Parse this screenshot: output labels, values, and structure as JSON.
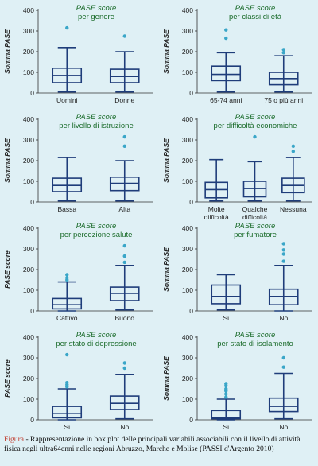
{
  "style": {
    "box_color": "#1f3d7a",
    "outlier_color": "#3aa6c8",
    "title_color": "#1a6b2a",
    "background": "#dff0f5"
  },
  "caption": {
    "label": "Figura",
    "text": " - Rappresentazione in box plot delle principali variabili associabili con il livello di attività fisica negli ultra64enni nelle regioni Abruzzo, Marche e Molise (PASSI d'Argento 2010)"
  },
  "chart_data": [
    {
      "type": "box",
      "title_line1": "PASE score",
      "title_line2": "per genere",
      "ylabel": "Somma PASE",
      "ylim": [
        0,
        400
      ],
      "yticks": [
        0,
        100,
        200,
        300,
        400
      ],
      "categories": [
        [
          "Uomini"
        ],
        [
          "Donne"
        ]
      ],
      "boxes": [
        {
          "min": 5,
          "q1": 50,
          "median": 85,
          "q3": 120,
          "max": 220,
          "outliers": [
            315
          ]
        },
        {
          "min": 5,
          "q1": 50,
          "median": 80,
          "q3": 115,
          "max": 200,
          "outliers": [
            275
          ]
        }
      ]
    },
    {
      "type": "box",
      "title_line1": "PASE score",
      "title_line2": "per classi di età",
      "ylabel": "Somma PASE",
      "ylim": [
        0,
        400
      ],
      "yticks": [
        0,
        100,
        200,
        300,
        400
      ],
      "categories": [
        [
          "65-74 anni"
        ],
        [
          "75 o più anni"
        ]
      ],
      "boxes": [
        {
          "min": 5,
          "q1": 60,
          "median": 90,
          "q3": 130,
          "max": 195,
          "outliers": [
            265,
            305
          ]
        },
        {
          "min": 5,
          "q1": 40,
          "median": 70,
          "q3": 100,
          "max": 180,
          "outliers": [
            195,
            210
          ]
        }
      ]
    },
    {
      "type": "box",
      "title_line1": "PASE score",
      "title_line2": "per livello di istruzione",
      "ylabel": "Somma PASE",
      "ylim": [
        0,
        400
      ],
      "yticks": [
        0,
        100,
        200,
        300,
        400
      ],
      "categories": [
        [
          "Bassa"
        ],
        [
          "Alta"
        ]
      ],
      "boxes": [
        {
          "min": 5,
          "q1": 50,
          "median": 80,
          "q3": 115,
          "max": 215,
          "outliers": []
        },
        {
          "min": 5,
          "q1": 55,
          "median": 90,
          "q3": 120,
          "max": 200,
          "outliers": [
            270,
            315
          ]
        }
      ]
    },
    {
      "type": "box",
      "title_line1": "PASE score",
      "title_line2": "per difficoltà economiche",
      "ylabel": "Somma PASE",
      "ylim": [
        0,
        400
      ],
      "yticks": [
        0,
        100,
        200,
        300,
        400
      ],
      "categories": [
        [
          "Molte",
          "difficoltà"
        ],
        [
          "Qualche",
          "difficoltà"
        ],
        [
          "Nessuna"
        ]
      ],
      "boxes": [
        {
          "min": 5,
          "q1": 20,
          "median": 60,
          "q3": 95,
          "max": 205,
          "outliers": []
        },
        {
          "min": 5,
          "q1": 25,
          "median": 65,
          "q3": 100,
          "max": 195,
          "outliers": [
            315
          ]
        },
        {
          "min": 5,
          "q1": 45,
          "median": 80,
          "q3": 115,
          "max": 215,
          "outliers": [
            245,
            270
          ]
        }
      ]
    },
    {
      "type": "box",
      "title_line1": "PASE score",
      "title_line2": "per percezione salute",
      "ylabel": "PASE score",
      "ylim": [
        0,
        400
      ],
      "yticks": [
        0,
        100,
        200,
        300,
        400
      ],
      "categories": [
        [
          "Cattivo"
        ],
        [
          "Buono"
        ]
      ],
      "boxes": [
        {
          "min": 0,
          "q1": 10,
          "median": 30,
          "q3": 60,
          "max": 140,
          "outliers": [
            150,
            160,
            175
          ]
        },
        {
          "min": 5,
          "q1": 50,
          "median": 85,
          "q3": 115,
          "max": 220,
          "outliers": [
            235,
            265,
            315
          ]
        }
      ]
    },
    {
      "type": "box",
      "title_line1": "PASE score",
      "title_line2": "per fumatore",
      "ylabel": "Somma PASE",
      "ylim": [
        0,
        400
      ],
      "yticks": [
        0,
        100,
        200,
        300,
        400
      ],
      "categories": [
        [
          "Si"
        ],
        [
          "No"
        ]
      ],
      "boxes": [
        {
          "min": 5,
          "q1": 35,
          "median": 70,
          "q3": 125,
          "max": 175,
          "outliers": []
        },
        {
          "min": 0,
          "q1": 30,
          "median": 70,
          "q3": 105,
          "max": 220,
          "outliers": [
            240,
            275,
            295,
            325
          ]
        }
      ]
    },
    {
      "type": "box",
      "title_line1": "PASE score",
      "title_line2": "per stato di depressione",
      "ylabel": "PASE score",
      "ylim": [
        0,
        400
      ],
      "yticks": [
        0,
        100,
        200,
        300,
        400
      ],
      "categories": [
        [
          "Si"
        ],
        [
          "No"
        ]
      ],
      "boxes": [
        {
          "min": 0,
          "q1": 10,
          "median": 30,
          "q3": 65,
          "max": 150,
          "outliers": [
            160,
            170,
            180,
            315
          ]
        },
        {
          "min": 5,
          "q1": 50,
          "median": 80,
          "q3": 115,
          "max": 220,
          "outliers": [
            250,
            275
          ]
        }
      ]
    },
    {
      "type": "box",
      "title_line1": "PASE score",
      "title_line2": "per stato di isolamento",
      "ylabel": "Somma PASE",
      "ylim": [
        0,
        400
      ],
      "yticks": [
        0,
        100,
        200,
        300,
        400
      ],
      "categories": [
        [
          "Si"
        ],
        [
          "No"
        ]
      ],
      "boxes": [
        {
          "min": 0,
          "q1": 5,
          "median": 10,
          "q3": 45,
          "max": 100,
          "outliers": [
            110,
            125,
            140,
            150,
            165,
            175
          ]
        },
        {
          "min": 5,
          "q1": 40,
          "median": 65,
          "q3": 105,
          "max": 225,
          "outliers": [
            255,
            300
          ]
        }
      ]
    }
  ]
}
